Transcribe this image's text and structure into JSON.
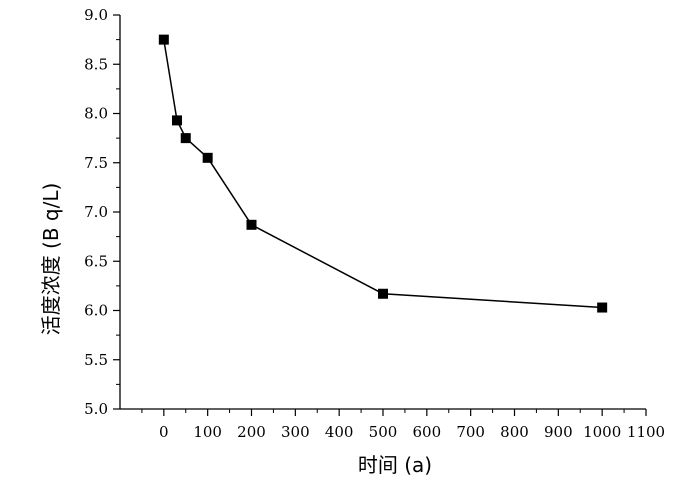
{
  "chart_data": {
    "type": "line",
    "title": "",
    "xlabel": "时间 (a)",
    "ylabel": "活度浓度 (B q/L)",
    "xlim": [
      -100,
      1100
    ],
    "ylim": [
      5.0,
      9.0
    ],
    "x_ticks": [
      "0",
      "100",
      "200",
      "300",
      "400",
      "500",
      "600",
      "700",
      "800",
      "900",
      "1000",
      "1100"
    ],
    "y_ticks": [
      "5.0",
      "5.5",
      "6.0",
      "6.5",
      "7.0",
      "7.5",
      "8.0",
      "8.5",
      "9.0"
    ],
    "grid": false,
    "legend": "none",
    "series": [
      {
        "x": [
          0,
          30,
          50,
          100,
          200,
          500,
          1000
        ],
        "y": [
          8.75,
          7.93,
          7.75,
          7.55,
          6.87,
          6.17,
          6.03
        ]
      }
    ],
    "colors": {
      "line": "#000000",
      "marker": "#000000",
      "axis": "#000000"
    }
  }
}
